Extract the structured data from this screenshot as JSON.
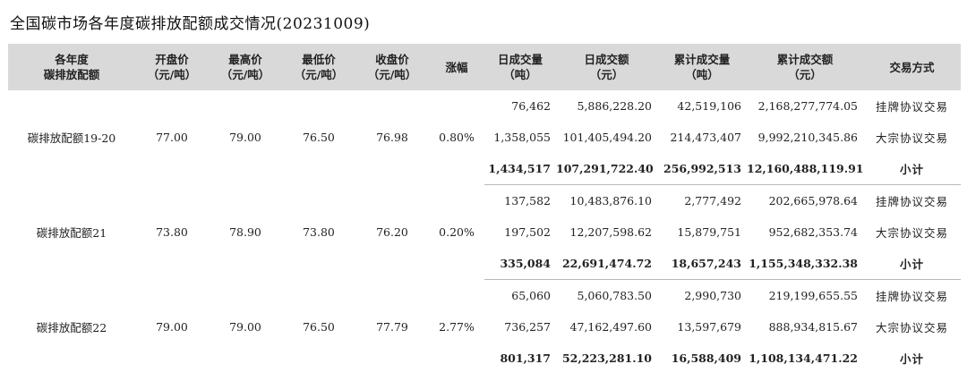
{
  "title": "全国碳市场各年度碳排放配额成交情况(20231009)",
  "headers": [
    {
      "l1": "各年度",
      "l2": "碳排放配额"
    },
    {
      "l1": "开盘价",
      "l2": "（元/吨）"
    },
    {
      "l1": "最高价",
      "l2": "（元/吨）"
    },
    {
      "l1": "最低价",
      "l2": "（元/吨）"
    },
    {
      "l1": "收盘价",
      "l2": "（元/吨）"
    },
    {
      "l1": "涨幅",
      "l2": ""
    },
    {
      "l1": "日成交量",
      "l2": "（吨）"
    },
    {
      "l1": "日成交额",
      "l2": "（元）"
    },
    {
      "l1": "累计成交量",
      "l2": "（吨）"
    },
    {
      "l1": "累计成交额",
      "l2": "（元）"
    },
    {
      "l1": "交易方式",
      "l2": ""
    }
  ],
  "groups": [
    {
      "name": "碳排放配额19-20",
      "open": "77.00",
      "high": "79.00",
      "low": "76.50",
      "close": "76.98",
      "change": "0.80%",
      "rows": [
        {
          "vol": "76,462",
          "amt": "5,886,228.20",
          "cvol": "42,519,106",
          "camt": "2,168,277,774.05",
          "way": "挂牌协议交易"
        },
        {
          "vol": "1,358,055",
          "amt": "101,405,494.20",
          "cvol": "214,473,407",
          "camt": "9,992,210,345.86",
          "way": "大宗协议交易"
        },
        {
          "vol": "1,434,517",
          "amt": "107,291,722.40",
          "cvol": "256,992,513",
          "camt": "12,160,488,119.91",
          "way": "小计"
        }
      ]
    },
    {
      "name": "碳排放配额21",
      "open": "73.80",
      "high": "78.90",
      "low": "73.80",
      "close": "76.20",
      "change": "0.20%",
      "rows": [
        {
          "vol": "137,582",
          "amt": "10,483,876.10",
          "cvol": "2,777,492",
          "camt": "202,665,978.64",
          "way": "挂牌协议交易"
        },
        {
          "vol": "197,502",
          "amt": "12,207,598.62",
          "cvol": "15,879,751",
          "camt": "952,682,353.74",
          "way": "大宗协议交易"
        },
        {
          "vol": "335,084",
          "amt": "22,691,474.72",
          "cvol": "18,657,243",
          "camt": "1,155,348,332.38",
          "way": "小计"
        }
      ]
    },
    {
      "name": "碳排放配额22",
      "open": "79.00",
      "high": "79.00",
      "low": "76.50",
      "close": "77.79",
      "change": "2.77%",
      "rows": [
        {
          "vol": "65,060",
          "amt": "5,060,783.50",
          "cvol": "2,990,730",
          "camt": "219,199,655.55",
          "way": "挂牌协议交易"
        },
        {
          "vol": "736,257",
          "amt": "47,162,497.60",
          "cvol": "13,597,679",
          "camt": "888,934,815.67",
          "way": "大宗协议交易"
        },
        {
          "vol": "801,317",
          "amt": "52,223,281.10",
          "cvol": "16,588,409",
          "camt": "1,108,134,471.22",
          "way": "小计"
        }
      ]
    }
  ]
}
